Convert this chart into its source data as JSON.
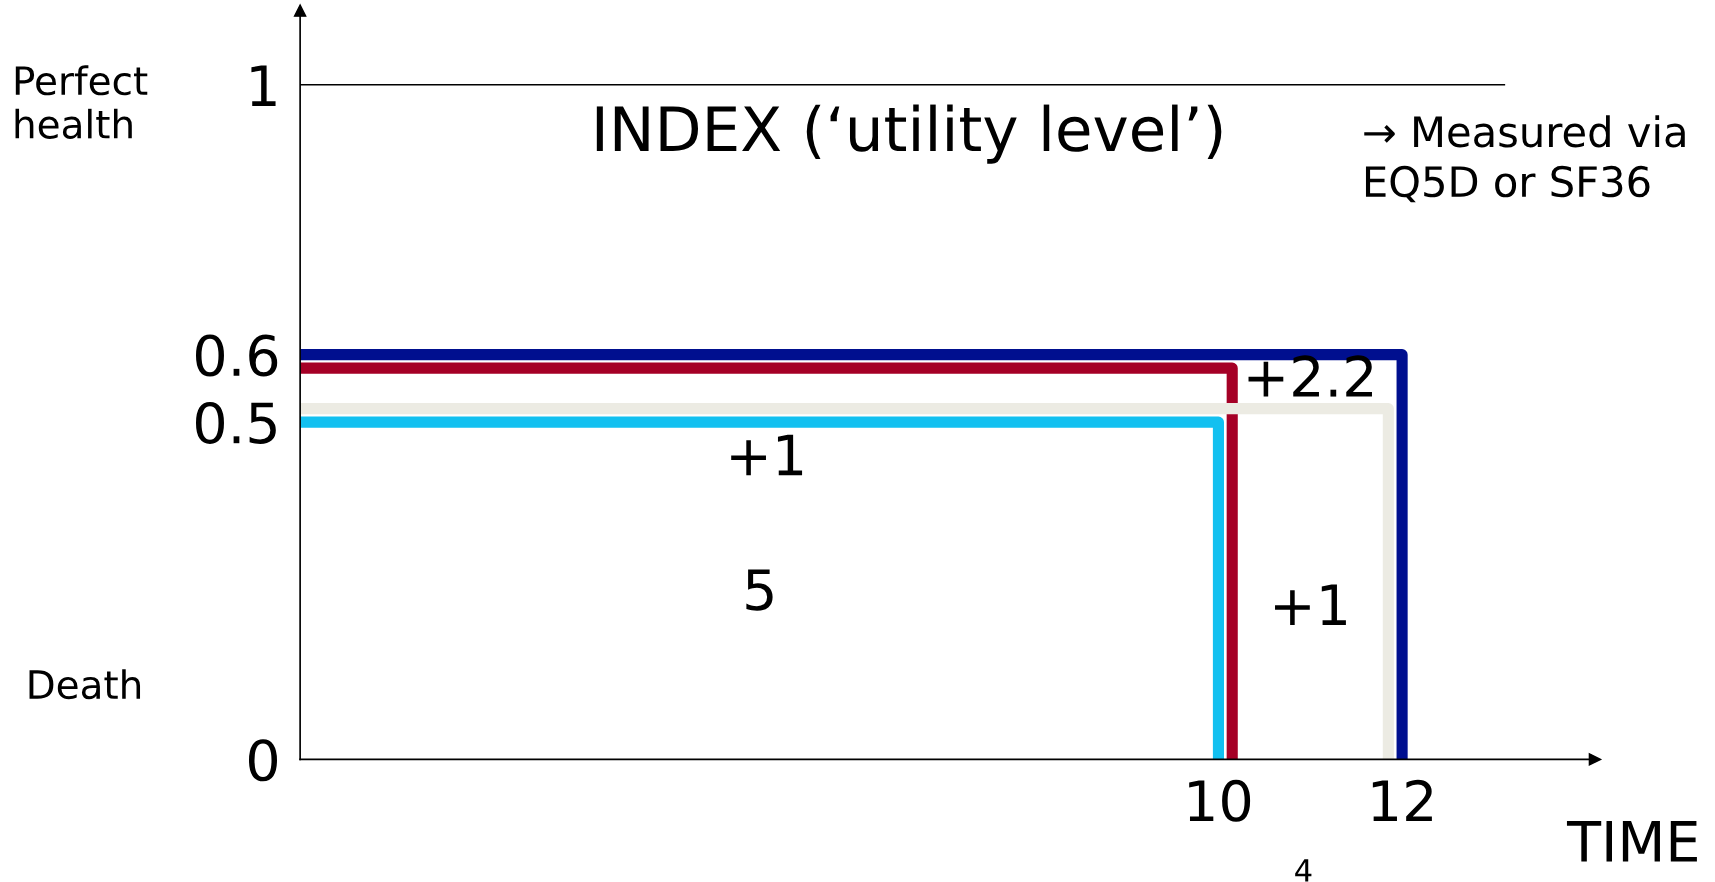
{
  "chart_data": {
    "type": "line",
    "xlabel": "TIME",
    "series": [
      {
        "color": "#000f8f",
        "x": [
          0,
          12,
          12
        ],
        "values": [
          0.6,
          0.6,
          0
        ]
      },
      {
        "color": "#a50026",
        "x": [
          0,
          10.15,
          10.15
        ],
        "values": [
          0.58,
          0.58,
          0
        ]
      },
      {
        "color": "#ecebe3",
        "x": [
          0,
          11.85,
          11.85
        ],
        "values": [
          0.52,
          0.52,
          0
        ]
      },
      {
        "color": "#12c0f0",
        "x": [
          0,
          10,
          10
        ],
        "values": [
          0.5,
          0.5,
          0
        ]
      }
    ],
    "xlim": [
      0,
      14.1
    ],
    "ylim": [
      0,
      1.11
    ],
    "xticks": [
      10,
      12
    ],
    "yticks": [
      0,
      0.5,
      0.6,
      1
    ],
    "ref_lines": [
      {
        "axis": "y",
        "value": 1,
        "color": "#000000"
      }
    ],
    "grid": false,
    "legend": false,
    "marker": "none",
    "line_style": "solid",
    "annotations": [
      "INDEX (‘utility level’)",
      "→ Measured via\nEQ5D or SF36",
      "+1",
      "+2.2",
      "5",
      "+1",
      "Perfect\nhealth",
      "Death",
      "4"
    ]
  }
}
